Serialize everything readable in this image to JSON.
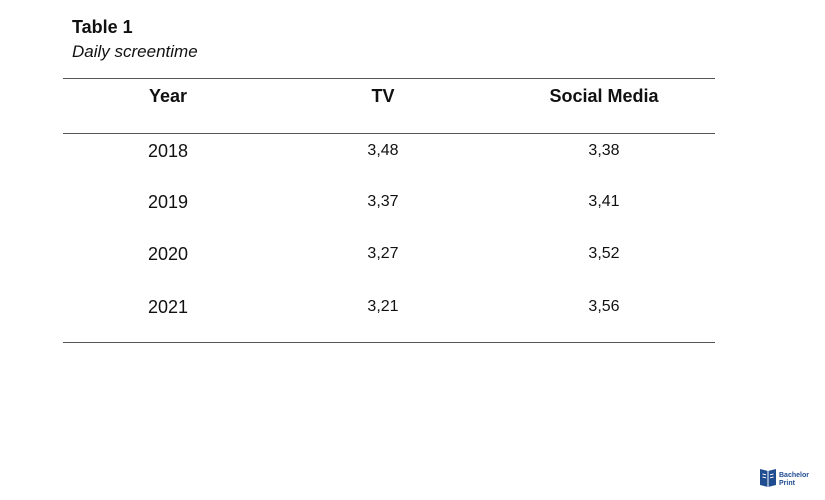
{
  "table": {
    "number": "Table 1",
    "title": "Daily screentime",
    "headers": [
      "Year",
      "TV",
      "Social Media"
    ],
    "rows": [
      [
        "2018",
        "3,48",
        "3,38"
      ],
      [
        "2019",
        "3,37",
        "3,41"
      ],
      [
        "2020",
        "3,27",
        "3,52"
      ],
      [
        "2021",
        "3,21",
        "3,56"
      ]
    ]
  },
  "logo": {
    "icon": "bachelorprint-book-icon",
    "line1": "Bachelor",
    "line2": "Print",
    "color": "#1f4b8f"
  }
}
